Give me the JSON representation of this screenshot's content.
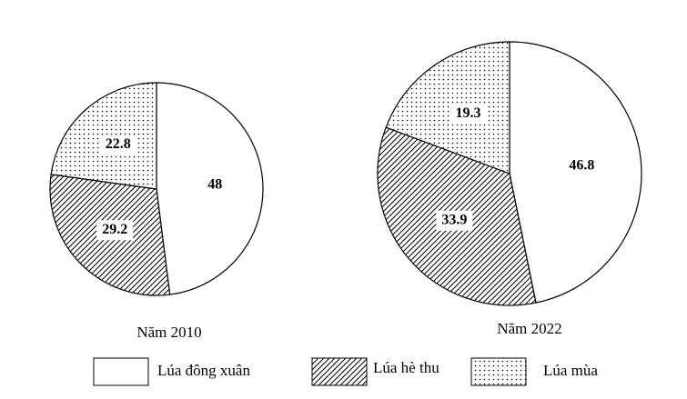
{
  "chart_data": [
    {
      "type": "pie",
      "title": "Năm 2010",
      "categories": [
        "Lúa đông xuân",
        "Lúa hè thu",
        "Lúa mùa"
      ],
      "values": [
        48,
        29.2,
        22.8
      ]
    },
    {
      "type": "pie",
      "title": "Năm 2022",
      "categories": [
        "Lúa đông xuân",
        "Lúa hè thu",
        "Lúa mùa"
      ],
      "values": [
        46.8,
        33.9,
        19.3
      ]
    }
  ]
}
